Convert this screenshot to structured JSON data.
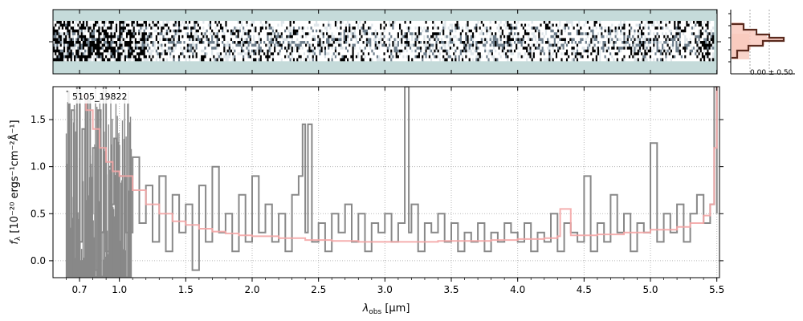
{
  "chart_data": [
    {
      "type": "heatmap",
      "panel": "2d-spectrum",
      "description_free": true,
      "xlim": [
        0.5,
        5.52
      ],
      "rows": 14,
      "cols": 380,
      "colors": {
        "background": "#c5dbda",
        "strong": "#000000",
        "mid": "#6f7f8c",
        "weak": "#ffffff"
      },
      "y_tick_labels": [],
      "x_tick_labels": []
    },
    {
      "type": "line",
      "panel": "profile",
      "annotation": "0.00 ± 0.50",
      "colors": {
        "profile": "#5a2a1e",
        "fill": "#f9c9bd",
        "band": "#f3b7a7"
      }
    },
    {
      "type": "line",
      "panel": "1d-spectrum",
      "object_label": "5105_19822",
      "xlabel_main": "λ",
      "xlabel_sub": "obs",
      "xlabel_unit": " [μm]",
      "ylabel": "f",
      "ylabel_sub": "λ",
      "ylabel_unit": " [10⁻²⁰ ergs⁻¹cm⁻²Å⁻¹]",
      "xlim": [
        0.5,
        5.52
      ],
      "ylim": [
        -0.18,
        1.85
      ],
      "x_ticks": [
        0.7,
        1.0,
        1.5,
        2.0,
        2.5,
        3.0,
        3.5,
        4.0,
        4.5,
        5.0,
        5.5
      ],
      "x_tick_labels": [
        "0.7",
        "1.0",
        "1.5",
        "2.0",
        "2.5",
        "3.0",
        "3.5",
        "4.0",
        "4.5",
        "5.0",
        "5.5"
      ],
      "y_ticks": [
        0.0,
        0.5,
        1.0,
        1.5
      ],
      "y_tick_labels": [
        "0.0",
        "0.5",
        "1.0",
        "1.5"
      ],
      "grid": true,
      "series": [
        {
          "role": "data",
          "color": "#888888",
          "x": [
            0.6,
            0.62,
            0.64,
            0.66,
            0.68,
            0.7,
            0.72,
            0.74,
            0.76,
            0.78,
            0.8,
            0.82,
            0.84,
            0.86,
            0.88,
            0.9,
            0.92,
            0.94,
            0.96,
            0.98,
            1.0,
            1.05,
            1.1,
            1.15,
            1.2,
            1.25,
            1.3,
            1.35,
            1.4,
            1.45,
            1.5,
            1.55,
            1.6,
            1.65,
            1.7,
            1.75,
            1.8,
            1.85,
            1.9,
            1.95,
            2.0,
            2.05,
            2.1,
            2.15,
            2.2,
            2.25,
            2.3,
            2.35,
            2.38,
            2.4,
            2.42,
            2.45,
            2.5,
            2.55,
            2.6,
            2.65,
            2.7,
            2.75,
            2.8,
            2.85,
            2.9,
            2.95,
            3.0,
            3.05,
            3.1,
            3.15,
            3.18,
            3.2,
            3.25,
            3.3,
            3.35,
            3.4,
            3.45,
            3.5,
            3.55,
            3.6,
            3.65,
            3.7,
            3.75,
            3.8,
            3.85,
            3.9,
            3.95,
            4.0,
            4.05,
            4.1,
            4.15,
            4.2,
            4.25,
            4.3,
            4.35,
            4.4,
            4.45,
            4.5,
            4.55,
            4.6,
            4.65,
            4.7,
            4.75,
            4.8,
            4.85,
            4.9,
            4.95,
            5.0,
            5.05,
            5.1,
            5.15,
            5.2,
            5.25,
            5.3,
            5.35,
            5.4,
            5.45,
            5.48,
            5.5
          ],
          "y": [
            1.8,
            -0.15,
            1.6,
            -0.1,
            1.85,
            0.2,
            1.4,
            -0.18,
            1.7,
            0.5,
            1.2,
            -0.1,
            1.6,
            0.3,
            1.85,
            0.1,
            1.0,
            0.6,
            1.3,
            0.2,
            0.9,
            0.3,
            1.1,
            0.4,
            0.8,
            0.2,
            0.9,
            0.1,
            0.7,
            0.3,
            0.6,
            -0.1,
            0.8,
            0.2,
            1.0,
            0.3,
            0.5,
            0.1,
            0.7,
            0.2,
            0.9,
            0.3,
            0.6,
            0.2,
            0.5,
            0.1,
            0.7,
            0.9,
            1.45,
            0.3,
            1.45,
            0.2,
            0.4,
            0.1,
            0.5,
            0.3,
            0.6,
            0.2,
            0.5,
            0.1,
            0.4,
            0.3,
            0.5,
            0.2,
            0.4,
            1.9,
            0.3,
            0.6,
            0.1,
            0.4,
            0.3,
            0.5,
            0.2,
            0.4,
            0.1,
            0.3,
            0.2,
            0.4,
            0.1,
            0.3,
            0.2,
            0.4,
            0.3,
            0.2,
            0.4,
            0.1,
            0.3,
            0.2,
            0.5,
            0.1,
            0.4,
            0.3,
            0.2,
            0.9,
            0.1,
            0.4,
            0.2,
            0.7,
            0.3,
            0.5,
            0.1,
            0.4,
            0.3,
            1.25,
            0.2,
            0.5,
            0.3,
            0.6,
            0.2,
            0.5,
            0.7,
            0.4,
            0.6,
            1.9,
            0.5
          ]
        },
        {
          "role": "model",
          "color": "#f4a6a6",
          "x": [
            0.7,
            0.75,
            0.8,
            0.85,
            0.9,
            0.95,
            1.0,
            1.1,
            1.2,
            1.3,
            1.4,
            1.5,
            1.6,
            1.7,
            1.8,
            1.9,
            2.0,
            2.2,
            2.4,
            2.6,
            2.8,
            3.0,
            3.2,
            3.4,
            3.6,
            3.8,
            4.0,
            4.2,
            4.3,
            4.32,
            4.4,
            4.6,
            4.8,
            5.0,
            5.2,
            5.3,
            5.4,
            5.45,
            5.48,
            5.5
          ],
          "y": [
            1.75,
            1.6,
            1.4,
            1.2,
            1.05,
            0.95,
            0.9,
            0.75,
            0.6,
            0.5,
            0.42,
            0.38,
            0.34,
            0.31,
            0.29,
            0.27,
            0.26,
            0.24,
            0.22,
            0.21,
            0.2,
            0.2,
            0.2,
            0.21,
            0.21,
            0.22,
            0.23,
            0.24,
            0.26,
            0.55,
            0.27,
            0.28,
            0.3,
            0.33,
            0.36,
            0.4,
            0.48,
            0.6,
            1.2,
            1.85
          ]
        }
      ]
    }
  ]
}
